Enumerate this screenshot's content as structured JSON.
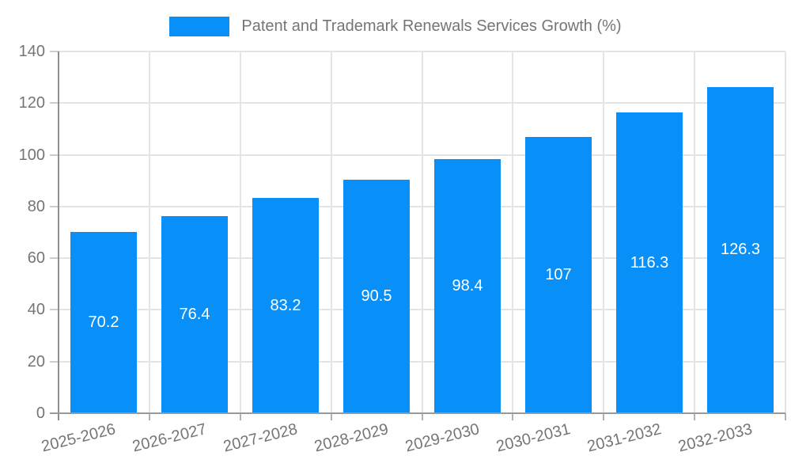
{
  "legend": {
    "label": "Patent and Trademark Renewals Services Growth (%)"
  },
  "chart_data": {
    "type": "bar",
    "title": "Patent and Trademark Renewals Services Growth (%)",
    "categories": [
      "2025-2026",
      "2026-2027",
      "2027-2028",
      "2028-2029",
      "2029-2030",
      "2030-2031",
      "2031-2032",
      "2032-2033"
    ],
    "values": [
      70.2,
      76.4,
      83.2,
      90.5,
      98.4,
      107,
      116.3,
      126.3
    ],
    "value_labels": [
      "70.2",
      "76.4",
      "83.2",
      "90.5",
      "98.4",
      "107",
      "116.3",
      "126.3"
    ],
    "xlabel": "",
    "ylabel": "",
    "ylim": [
      0,
      140
    ],
    "yticks": [
      0,
      20,
      40,
      60,
      80,
      100,
      120,
      140
    ],
    "grid": true,
    "legend_position": "top",
    "colors": {
      "bar": "#0890f8",
      "bar_value_label": "#ffffff",
      "axis_text": "#757575",
      "axis_line": "#9a9a9a",
      "gridline": "#e4e4e4",
      "y_tick": "#cccccc",
      "x_tick": "#b3b3b3",
      "background": "#ffffff"
    }
  }
}
